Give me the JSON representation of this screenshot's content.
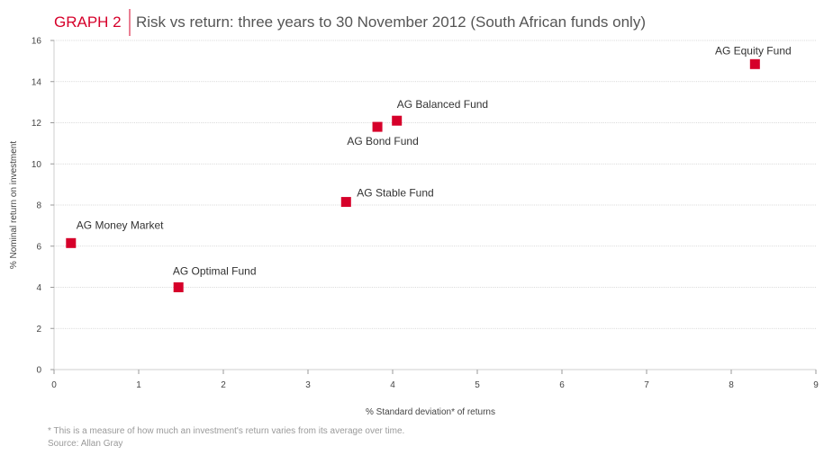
{
  "header": {
    "label": "GRAPH 2",
    "title": "Risk vs return: three years to 30 November 2012 (South African funds only)"
  },
  "chart_data": {
    "type": "scatter",
    "xlabel": "% Standard deviation* of returns",
    "ylabel": "% Nominal return on investment",
    "xlim": [
      0,
      9
    ],
    "ylim": [
      0,
      16
    ],
    "xticks": [
      0,
      1,
      2,
      3,
      4,
      5,
      6,
      7,
      8,
      9
    ],
    "yticks": [
      0,
      2,
      4,
      6,
      8,
      10,
      12,
      14,
      16
    ],
    "grid": true,
    "color": "#d6002a",
    "points": [
      {
        "label": "AG Money Market",
        "x": 0.2,
        "y": 6.15
      },
      {
        "label": "AG Optimal Fund",
        "x": 1.47,
        "y": 4.0
      },
      {
        "label": "AG Stable Fund",
        "x": 3.45,
        "y": 8.15
      },
      {
        "label": "AG Bond Fund",
        "x": 3.82,
        "y": 11.8
      },
      {
        "label": "AG Balanced Fund",
        "x": 4.05,
        "y": 12.1
      },
      {
        "label": "AG Equity Fund",
        "x": 8.28,
        "y": 14.85
      }
    ]
  },
  "footnotes": {
    "note": "* This is a measure of how much an investment's return varies from its average over time.",
    "source": "Source: Allan Gray"
  }
}
